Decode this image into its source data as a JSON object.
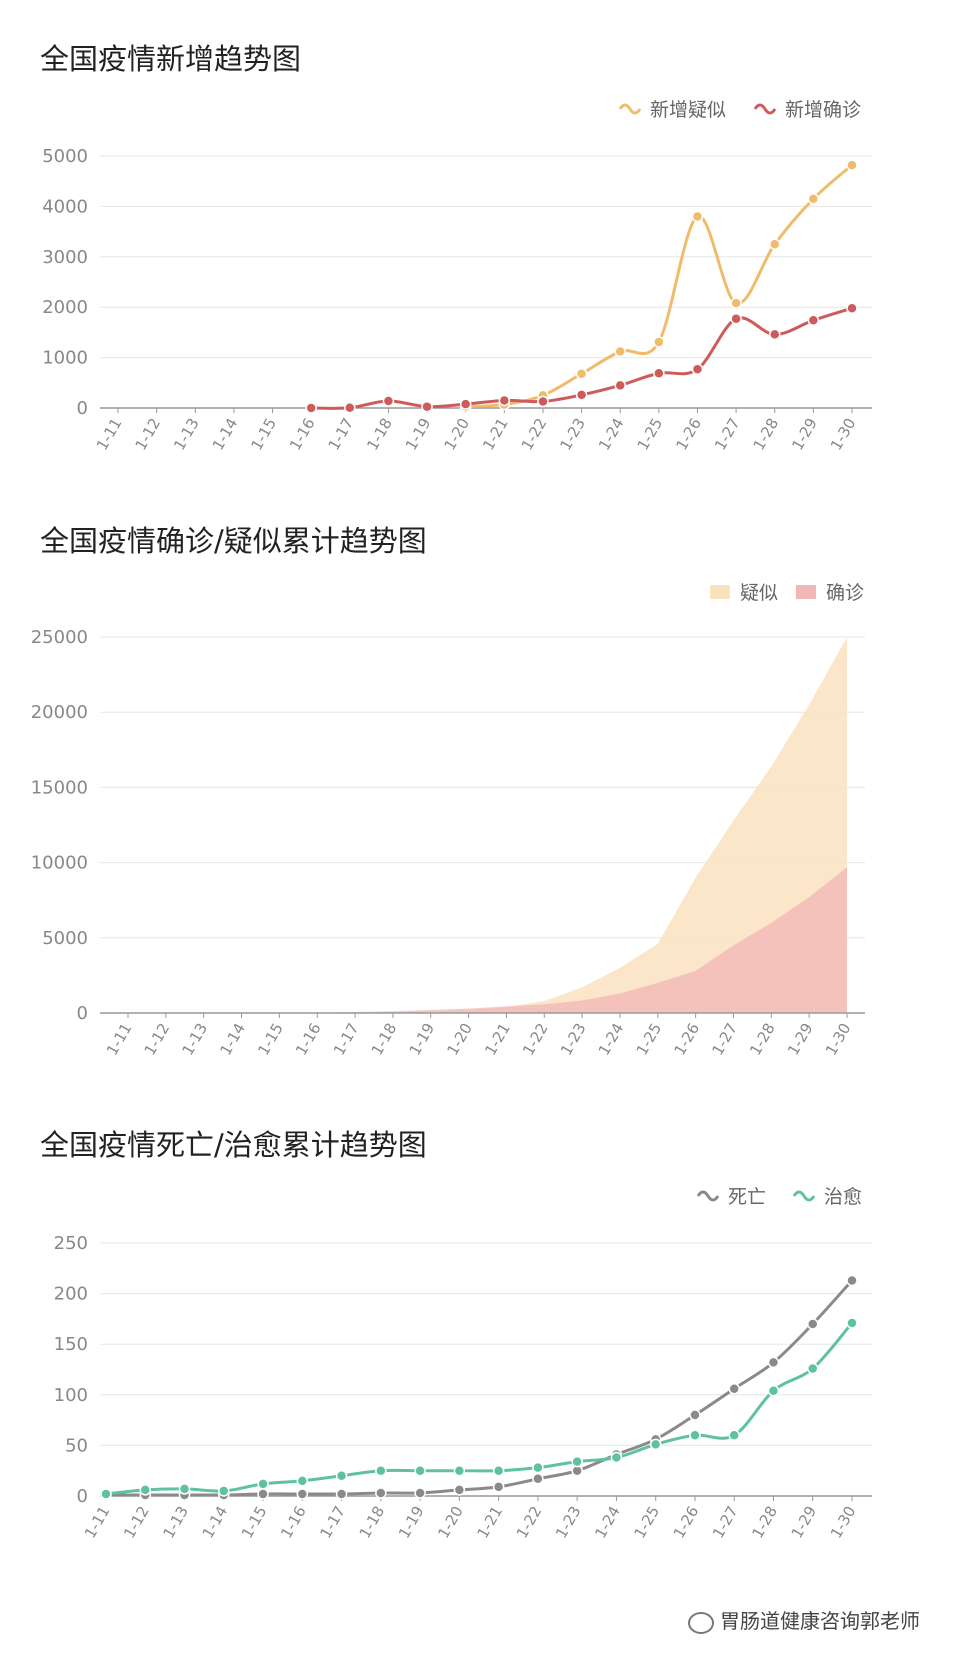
{
  "colors": {
    "suspect": "#eebc6a",
    "confirmed": "#cf5a5a",
    "suspect_area": "#fbe2bf",
    "confirmed_area": "#f1b6b6",
    "death": "#8a8a8a",
    "cured": "#5ec39c",
    "grid": "#e6e6e6",
    "axis": "#999999"
  },
  "footer": {
    "text": "胃肠道健康咨询郭老师"
  },
  "chart_data": [
    {
      "type": "line",
      "title": "全国疫情新增趋势图",
      "categories": [
        "1-11",
        "1-12",
        "1-13",
        "1-14",
        "1-15",
        "1-16",
        "1-17",
        "1-18",
        "1-19",
        "1-20",
        "1-21",
        "1-22",
        "1-23",
        "1-24",
        "1-25",
        "1-26",
        "1-27",
        "1-28",
        "1-29",
        "1-30"
      ],
      "yticks": [
        "0",
        "1000",
        "2000",
        "3000",
        "4000",
        "5000"
      ],
      "ylim": [
        0,
        5000
      ],
      "legend": "top-right",
      "grid": true,
      "series": [
        {
          "name": "新增疑似",
          "color": "#eebc6a",
          "values": [
            null,
            null,
            null,
            null,
            null,
            null,
            null,
            null,
            null,
            27,
            70,
            250,
            680,
            1120,
            1310,
            3800,
            2080,
            3250,
            4150,
            4820
          ]
        },
        {
          "name": "新增确诊",
          "color": "#cf5a5a",
          "values": [
            null,
            null,
            null,
            null,
            null,
            0,
            4,
            140,
            26,
            77,
            150,
            130,
            260,
            450,
            690,
            770,
            1770,
            1460,
            1740,
            1980
          ]
        }
      ]
    },
    {
      "type": "area",
      "title": "全国疫情确诊/疑似累计趋势图",
      "categories": [
        "1-11",
        "1-12",
        "1-13",
        "1-14",
        "1-15",
        "1-16",
        "1-17",
        "1-18",
        "1-19",
        "1-20",
        "1-21",
        "1-22",
        "1-23",
        "1-24",
        "1-25",
        "1-26",
        "1-27",
        "1-28",
        "1-29",
        "1-30"
      ],
      "yticks": [
        "0",
        "5000",
        "10000",
        "15000",
        "20000",
        "25000"
      ],
      "ylim": [
        0,
        25000
      ],
      "legend": "top-right",
      "grid": true,
      "series": [
        {
          "name": "疑似",
          "color": "#fbe2bf",
          "values": [
            0,
            0,
            0,
            0,
            0,
            0,
            0,
            0,
            100,
            200,
            400,
            800,
            1700,
            3000,
            4600,
            9000,
            12800,
            16400,
            20500,
            25000
          ]
        },
        {
          "name": "确诊",
          "color": "#f1b6b6",
          "values": [
            40,
            40,
            40,
            40,
            40,
            45,
            60,
            120,
            200,
            290,
            440,
            570,
            830,
            1300,
            2000,
            2800,
            4500,
            6000,
            7700,
            9700
          ]
        }
      ]
    },
    {
      "type": "line",
      "title": "全国疫情死亡/治愈累计趋势图",
      "categories": [
        "1-11",
        "1-12",
        "1-13",
        "1-14",
        "1-15",
        "1-16",
        "1-17",
        "1-18",
        "1-19",
        "1-20",
        "1-21",
        "1-22",
        "1-23",
        "1-24",
        "1-25",
        "1-26",
        "1-27",
        "1-28",
        "1-29",
        "1-30"
      ],
      "yticks": [
        "0",
        "50",
        "100",
        "150",
        "200",
        "250"
      ],
      "ylim": [
        0,
        250
      ],
      "legend": "top-right",
      "grid": true,
      "series": [
        {
          "name": "死亡",
          "color": "#8a8a8a",
          "values": [
            1,
            1,
            1,
            1,
            2,
            2,
            2,
            3,
            3,
            6,
            9,
            17,
            25,
            41,
            56,
            80,
            106,
            132,
            170,
            213
          ]
        },
        {
          "name": "治愈",
          "color": "#5ec39c",
          "values": [
            2,
            6,
            7,
            5,
            12,
            15,
            20,
            25,
            25,
            25,
            25,
            28,
            34,
            38,
            51,
            60,
            60,
            104,
            126,
            171
          ]
        }
      ]
    }
  ]
}
